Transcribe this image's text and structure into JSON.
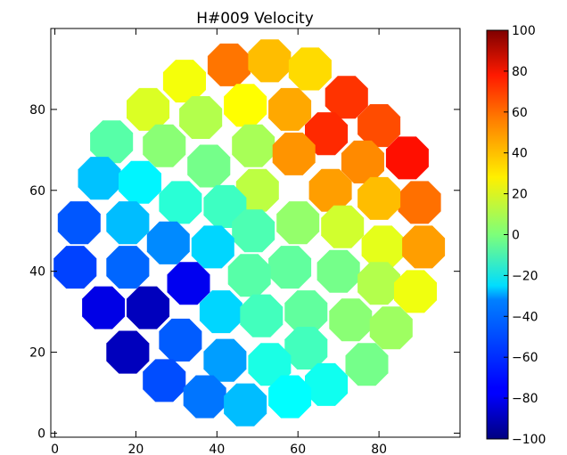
{
  "chart_data": {
    "type": "scatter",
    "title": "H#009 Velocity",
    "xlabel": "",
    "ylabel": "",
    "xlim": [
      -1,
      100
    ],
    "ylim": [
      -1,
      100
    ],
    "xticks": [
      0,
      20,
      40,
      60,
      80
    ],
    "yticks": [
      0,
      20,
      40,
      60,
      80
    ],
    "grid": false,
    "marker": "octagon",
    "colorbar": {
      "label": "",
      "vmin": -100,
      "vmax": 100,
      "ticks": [
        100,
        80,
        60,
        40,
        20,
        0,
        -20,
        -40,
        -60,
        -80,
        -100
      ],
      "colormap": "jet"
    },
    "points": [
      {
        "x": 43,
        "y": 91,
        "v": 52
      },
      {
        "x": 53,
        "y": 92,
        "v": 38
      },
      {
        "x": 63,
        "y": 90,
        "v": 32
      },
      {
        "x": 32,
        "y": 87,
        "v": 23
      },
      {
        "x": 72,
        "y": 83,
        "v": 65
      },
      {
        "x": 23,
        "y": 80,
        "v": 18
      },
      {
        "x": 47,
        "y": 81,
        "v": 25
      },
      {
        "x": 58,
        "y": 80,
        "v": 42
      },
      {
        "x": 36,
        "y": 78,
        "v": 10
      },
      {
        "x": 80,
        "y": 76,
        "v": 60
      },
      {
        "x": 67,
        "y": 74,
        "v": 67
      },
      {
        "x": 14,
        "y": 72,
        "v": -8
      },
      {
        "x": 27,
        "y": 71,
        "v": 2
      },
      {
        "x": 49,
        "y": 71,
        "v": 8
      },
      {
        "x": 87,
        "y": 68,
        "v": 72
      },
      {
        "x": 59,
        "y": 69,
        "v": 46
      },
      {
        "x": 76,
        "y": 67,
        "v": 48
      },
      {
        "x": 38,
        "y": 66,
        "v": -2
      },
      {
        "x": 11,
        "y": 63,
        "v": -37
      },
      {
        "x": 21,
        "y": 62,
        "v": -27
      },
      {
        "x": 50,
        "y": 60,
        "v": 12
      },
      {
        "x": 68,
        "y": 60,
        "v": 44
      },
      {
        "x": 31,
        "y": 57,
        "v": -17
      },
      {
        "x": 90,
        "y": 57,
        "v": 53
      },
      {
        "x": 80,
        "y": 58,
        "v": 38
      },
      {
        "x": 42,
        "y": 56,
        "v": -13
      },
      {
        "x": 6,
        "y": 52,
        "v": -58
      },
      {
        "x": 18,
        "y": 52,
        "v": -38
      },
      {
        "x": 60,
        "y": 52,
        "v": 4
      },
      {
        "x": 71,
        "y": 51,
        "v": 16
      },
      {
        "x": 49,
        "y": 50,
        "v": -10
      },
      {
        "x": 28,
        "y": 47,
        "v": -48
      },
      {
        "x": 39,
        "y": 46,
        "v": -33
      },
      {
        "x": 81,
        "y": 46,
        "v": 20
      },
      {
        "x": 91,
        "y": 46,
        "v": 44
      },
      {
        "x": 5,
        "y": 41,
        "v": -62
      },
      {
        "x": 18,
        "y": 41,
        "v": -55
      },
      {
        "x": 58,
        "y": 41,
        "v": -6
      },
      {
        "x": 70,
        "y": 40,
        "v": -2
      },
      {
        "x": 48,
        "y": 39,
        "v": -8
      },
      {
        "x": 33,
        "y": 37,
        "v": -78
      },
      {
        "x": 80,
        "y": 37,
        "v": 10
      },
      {
        "x": 89,
        "y": 35,
        "v": 22
      },
      {
        "x": 12,
        "y": 31,
        "v": -80
      },
      {
        "x": 23,
        "y": 31,
        "v": -88
      },
      {
        "x": 41,
        "y": 30,
        "v": -33
      },
      {
        "x": 51,
        "y": 29,
        "v": -12
      },
      {
        "x": 62,
        "y": 30,
        "v": -6
      },
      {
        "x": 73,
        "y": 28,
        "v": 2
      },
      {
        "x": 83,
        "y": 26,
        "v": 6
      },
      {
        "x": 31,
        "y": 23,
        "v": -57
      },
      {
        "x": 18,
        "y": 20,
        "v": -88
      },
      {
        "x": 62,
        "y": 21,
        "v": -12
      },
      {
        "x": 42,
        "y": 18,
        "v": -44
      },
      {
        "x": 53,
        "y": 17,
        "v": -20
      },
      {
        "x": 77,
        "y": 17,
        "v": -2
      },
      {
        "x": 27,
        "y": 13,
        "v": -60
      },
      {
        "x": 67,
        "y": 12,
        "v": -22
      },
      {
        "x": 37,
        "y": 9,
        "v": -52
      },
      {
        "x": 58,
        "y": 9,
        "v": -25
      },
      {
        "x": 47,
        "y": 7,
        "v": -38
      }
    ]
  }
}
